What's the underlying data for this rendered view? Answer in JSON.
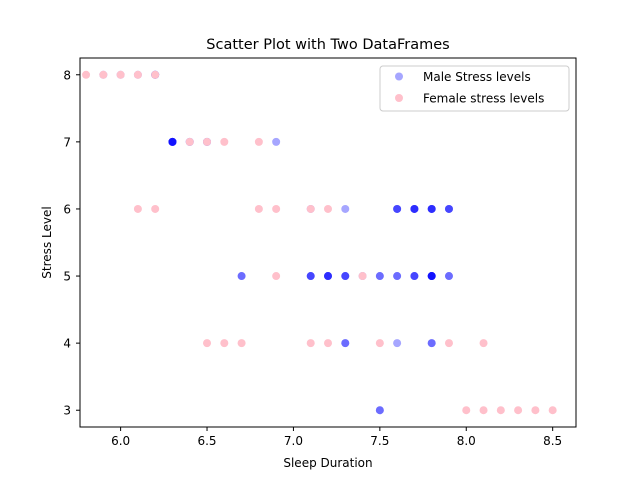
{
  "chart_data": {
    "type": "scatter",
    "title": "Scatter Plot with Two DataFrames",
    "xlabel": "Sleep Duration",
    "ylabel": "Stress Level",
    "xlim": [
      5.765,
      8.635
    ],
    "ylim": [
      2.75,
      8.25
    ],
    "xticks": [
      6.0,
      6.5,
      7.0,
      7.5,
      8.0,
      8.5
    ],
    "xtick_labels": [
      "6.0",
      "6.5",
      "7.0",
      "7.5",
      "8.0",
      "8.5"
    ],
    "yticks": [
      3,
      4,
      5,
      6,
      7,
      8
    ],
    "ytick_labels": [
      "3",
      "4",
      "5",
      "6",
      "7",
      "8"
    ],
    "grid": false,
    "legend_position": "top-right",
    "series": [
      {
        "name": "Male Stress levels",
        "color": "#0000ff",
        "alpha": 0.35,
        "points": [
          [
            5.9,
            8
          ],
          [
            6.0,
            8
          ],
          [
            6.1,
            8
          ],
          [
            6.2,
            8
          ],
          [
            6.2,
            8
          ],
          [
            6.2,
            8
          ],
          [
            6.3,
            7
          ],
          [
            6.3,
            7
          ],
          [
            6.3,
            7
          ],
          [
            6.3,
            7
          ],
          [
            6.3,
            7
          ],
          [
            6.3,
            7
          ],
          [
            6.4,
            7
          ],
          [
            6.4,
            7
          ],
          [
            6.5,
            7
          ],
          [
            6.5,
            7
          ],
          [
            6.9,
            7
          ],
          [
            7.6,
            6
          ],
          [
            7.6,
            6
          ],
          [
            7.6,
            6
          ],
          [
            7.7,
            6
          ],
          [
            7.7,
            6
          ],
          [
            7.7,
            6
          ],
          [
            7.7,
            6
          ],
          [
            7.8,
            6
          ],
          [
            7.8,
            6
          ],
          [
            7.8,
            6
          ],
          [
            7.8,
            6
          ],
          [
            7.9,
            6
          ],
          [
            7.9,
            6
          ],
          [
            7.9,
            6
          ],
          [
            7.1,
            6
          ],
          [
            7.3,
            6
          ],
          [
            6.7,
            5
          ],
          [
            6.7,
            5
          ],
          [
            7.1,
            5
          ],
          [
            7.1,
            5
          ],
          [
            7.1,
            5
          ],
          [
            7.2,
            5
          ],
          [
            7.2,
            5
          ],
          [
            7.2,
            5
          ],
          [
            7.2,
            5
          ],
          [
            7.3,
            5
          ],
          [
            7.3,
            5
          ],
          [
            7.3,
            5
          ],
          [
            7.4,
            5
          ],
          [
            7.5,
            5
          ],
          [
            7.5,
            5
          ],
          [
            7.6,
            5
          ],
          [
            7.6,
            5
          ],
          [
            7.7,
            5
          ],
          [
            7.7,
            5
          ],
          [
            7.7,
            5
          ],
          [
            7.8,
            5
          ],
          [
            7.8,
            5
          ],
          [
            7.8,
            5
          ],
          [
            7.8,
            5
          ],
          [
            7.8,
            5
          ],
          [
            7.8,
            5
          ],
          [
            7.9,
            5
          ],
          [
            7.9,
            5
          ],
          [
            7.3,
            4
          ],
          [
            7.3,
            4
          ],
          [
            7.6,
            4
          ],
          [
            7.8,
            4
          ],
          [
            7.8,
            4
          ],
          [
            7.5,
            3
          ],
          [
            7.5,
            3
          ]
        ]
      },
      {
        "name": "Female stress levels",
        "color": "#ffc0cb",
        "alpha": 1.0,
        "points": [
          [
            5.8,
            8
          ],
          [
            5.9,
            8
          ],
          [
            6.0,
            8
          ],
          [
            6.1,
            8
          ],
          [
            6.2,
            8
          ],
          [
            6.4,
            7
          ],
          [
            6.5,
            7
          ],
          [
            6.6,
            7
          ],
          [
            6.8,
            7
          ],
          [
            6.1,
            6
          ],
          [
            6.2,
            6
          ],
          [
            6.8,
            6
          ],
          [
            6.9,
            6
          ],
          [
            7.1,
            6
          ],
          [
            7.2,
            6
          ],
          [
            6.9,
            5
          ],
          [
            7.4,
            5
          ],
          [
            6.5,
            4
          ],
          [
            6.6,
            4
          ],
          [
            6.7,
            4
          ],
          [
            7.1,
            4
          ],
          [
            7.2,
            4
          ],
          [
            7.5,
            4
          ],
          [
            7.9,
            4
          ],
          [
            8.1,
            4
          ],
          [
            8.0,
            3
          ],
          [
            8.1,
            3
          ],
          [
            8.2,
            3
          ],
          [
            8.3,
            3
          ],
          [
            8.4,
            3
          ],
          [
            8.5,
            3
          ]
        ]
      }
    ]
  }
}
